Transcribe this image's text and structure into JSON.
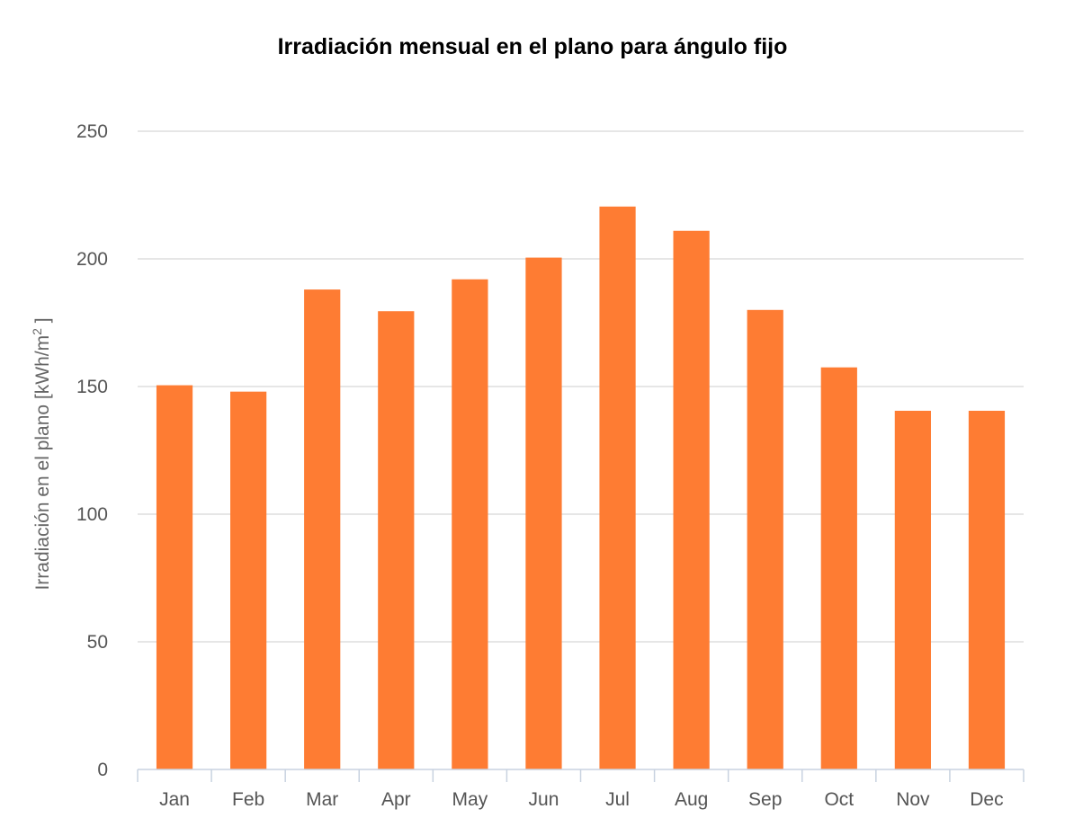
{
  "chart_data": {
    "type": "bar",
    "title": "Irradiación mensual en el plano para ángulo fijo",
    "xlabel": "",
    "ylabel": "Irradiación en el plano [kWh/m",
    "ylabel_superscript": "2",
    "ylabel_suffix": " ]",
    "categories": [
      "Jan",
      "Feb",
      "Mar",
      "Apr",
      "May",
      "Jun",
      "Jul",
      "Aug",
      "Sep",
      "Oct",
      "Nov",
      "Dec"
    ],
    "values": [
      150.5,
      148,
      188,
      179.5,
      192,
      200.5,
      220.5,
      211,
      180,
      157.5,
      140.5,
      140.5
    ],
    "ylim": [
      0,
      250
    ],
    "yticks": [
      0,
      50,
      100,
      150,
      200,
      250
    ],
    "grid": true,
    "legend": "none",
    "bar_color": "#fe7c33",
    "grid_color": "#d8d8d8",
    "axis_color": "#c8d2e0"
  }
}
